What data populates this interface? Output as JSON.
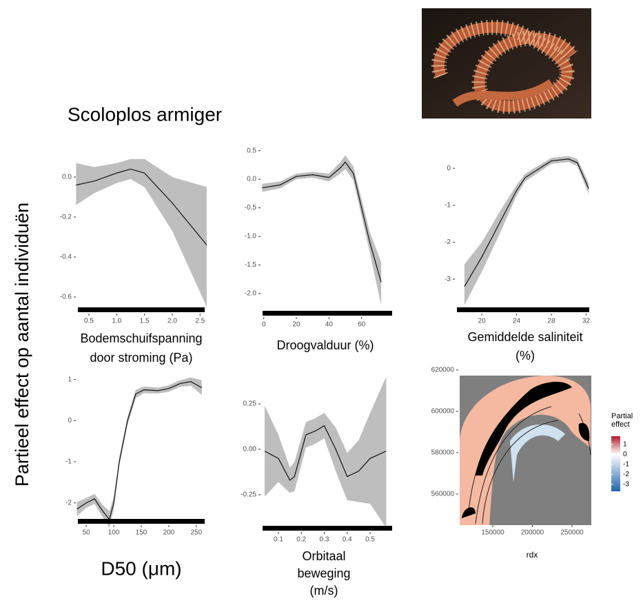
{
  "figure": {
    "title": "Scoloplos armiger",
    "ylabel": "Partieel effect op aantal individuën"
  },
  "chart_data": [
    {
      "type": "line",
      "xlabel": [
        "Bodemschuifspanning",
        "door stroming (Pa)"
      ],
      "x": [
        0.27,
        0.6,
        1.0,
        1.25,
        1.5,
        2.0,
        2.62
      ],
      "values": [
        -0.04,
        -0.02,
        0.02,
        0.04,
        0.02,
        -0.13,
        -0.34
      ],
      "upper": [
        0.07,
        0.05,
        0.07,
        0.09,
        0.09,
        0.0,
        -0.05
      ],
      "lower": [
        -0.14,
        -0.08,
        -0.03,
        -0.01,
        -0.05,
        -0.27,
        -0.65
      ],
      "xlim": [
        0.265,
        2.62
      ],
      "ylim": [
        -0.683,
        0.179
      ],
      "xticks": [
        0.5,
        {
          "value": 1,
          "label": "1.0"
        },
        1.5,
        {
          "value": 2,
          "label": "2.0"
        },
        2.5
      ],
      "yticks": [
        {
          "value": 0,
          "label": "0.0"
        },
        -0.2,
        -0.4,
        -0.6
      ]
    },
    {
      "type": "line",
      "xlabel": [
        "Droogvalduur (%)"
      ],
      "x": [
        -1,
        10,
        20,
        30,
        40,
        47,
        50,
        55,
        60,
        65,
        72
      ],
      "values": [
        -0.15,
        -0.1,
        0.05,
        0.08,
        0.03,
        0.2,
        0.3,
        0.1,
        -0.5,
        -1.1,
        -1.8
      ],
      "upper": [
        -0.08,
        -0.04,
        0.1,
        0.13,
        0.1,
        0.3,
        0.42,
        0.22,
        -0.35,
        -0.92,
        -1.45
      ],
      "lower": [
        -0.22,
        -0.16,
        0.0,
        0.03,
        -0.04,
        0.1,
        0.18,
        -0.02,
        -0.65,
        -1.28,
        -2.2
      ],
      "xlim": [
        -2,
        80
      ],
      "ylim": [
        -2.41,
        0.58
      ],
      "xticks": [
        0,
        20,
        40,
        60
      ],
      "yticks": [
        0.5,
        {
          "value": 0,
          "label": "0.0"
        },
        -0.5,
        {
          "value": -1,
          "label": "-1.0"
        },
        -1.5,
        {
          "value": -2,
          "label": "-2.0"
        }
      ]
    },
    {
      "type": "line",
      "xlabel": [
        "Gemiddelde saliniteit",
        "(%)"
      ],
      "x": [
        18,
        20,
        22,
        24,
        25,
        26,
        28,
        30,
        31,
        32.3
      ],
      "values": [
        -3.2,
        -2.4,
        -1.5,
        -0.6,
        -0.25,
        -0.1,
        0.2,
        0.25,
        0.15,
        -0.55
      ],
      "upper": [
        -2.6,
        -2.0,
        -1.2,
        -0.45,
        -0.15,
        0.0,
        0.28,
        0.33,
        0.25,
        -0.4
      ],
      "lower": [
        -3.7,
        -2.8,
        -1.8,
        -0.75,
        -0.35,
        -0.2,
        0.12,
        0.17,
        0.05,
        -0.7
      ],
      "xlim": [
        16.9,
        32.6
      ],
      "ylim": [
        -3.93,
        0.6
      ],
      "xticks": [
        20,
        24,
        28,
        32
      ],
      "yticks": [
        0,
        -1,
        -2,
        -3
      ]
    },
    {
      "type": "line",
      "xlabel": [
        "D50 (μm)"
      ],
      "x": [
        33,
        50,
        65,
        80,
        92,
        100,
        110,
        125,
        140,
        155,
        180,
        200,
        220,
        240,
        260
      ],
      "values": [
        -2.15,
        -2.0,
        -1.9,
        -2.2,
        -2.4,
        -2.0,
        -1.0,
        0.0,
        0.65,
        0.75,
        0.73,
        0.78,
        0.9,
        0.95,
        0.8
      ],
      "upper": [
        -1.98,
        -1.88,
        -1.78,
        -2.05,
        -2.2,
        -1.85,
        -0.9,
        0.1,
        0.75,
        0.83,
        0.8,
        0.86,
        0.98,
        1.05,
        0.98
      ],
      "lower": [
        -2.32,
        -2.12,
        -2.02,
        -2.35,
        -2.6,
        -2.15,
        -1.1,
        -0.1,
        0.55,
        0.67,
        0.66,
        0.7,
        0.82,
        0.85,
        0.62
      ],
      "xlim": [
        31,
        269
      ],
      "ylim": [
        -2.54,
        1.23
      ],
      "xticks": [
        50,
        100,
        150,
        200,
        250
      ],
      "yticks": [
        1,
        0,
        -1,
        -2
      ]
    },
    {
      "type": "line",
      "xlabel": [
        "Orbitaal",
        "beweging",
        "(m/s)"
      ],
      "x": [
        0.04,
        0.1,
        0.15,
        0.17,
        0.22,
        0.26,
        0.3,
        0.35,
        0.4,
        0.45,
        0.5,
        0.57
      ],
      "values": [
        -0.01,
        -0.05,
        -0.17,
        -0.15,
        0.08,
        0.1,
        0.13,
        0.0,
        -0.15,
        -0.12,
        -0.05,
        -0.01
      ],
      "upper": [
        0.24,
        0.08,
        -0.1,
        -0.07,
        0.15,
        0.17,
        0.2,
        0.12,
        -0.02,
        0.05,
        0.2,
        0.4
      ],
      "lower": [
        -0.26,
        -0.18,
        -0.24,
        -0.23,
        0.01,
        0.03,
        0.06,
        -0.12,
        -0.28,
        -0.29,
        -0.3,
        -0.43
      ],
      "xlim": [
        0.022,
        0.605
      ],
      "ylim": [
        -0.455,
        0.436
      ],
      "xticks": [
        0.1,
        0.2,
        0.3,
        0.4,
        0.5
      ],
      "yticks": [
        0.25,
        {
          "value": 0,
          "label": "0.00"
        },
        -0.25
      ]
    },
    {
      "type": "heatmap",
      "xlabel": [
        "rdx"
      ],
      "legend_title": [
        "Partial",
        "effect"
      ],
      "xlim": [
        106500,
        274300
      ],
      "ylim": [
        545000,
        621300
      ],
      "xticks": [
        150000,
        200000,
        250000
      ],
      "yticks": [
        620000,
        600000,
        580000,
        560000
      ],
      "clim": [
        -3.7,
        1.8
      ],
      "cticks": [
        1,
        0,
        -1,
        -2,
        -3
      ],
      "colors": [
        "#2166ac",
        "#ffffff",
        "#b2182b"
      ]
    }
  ]
}
